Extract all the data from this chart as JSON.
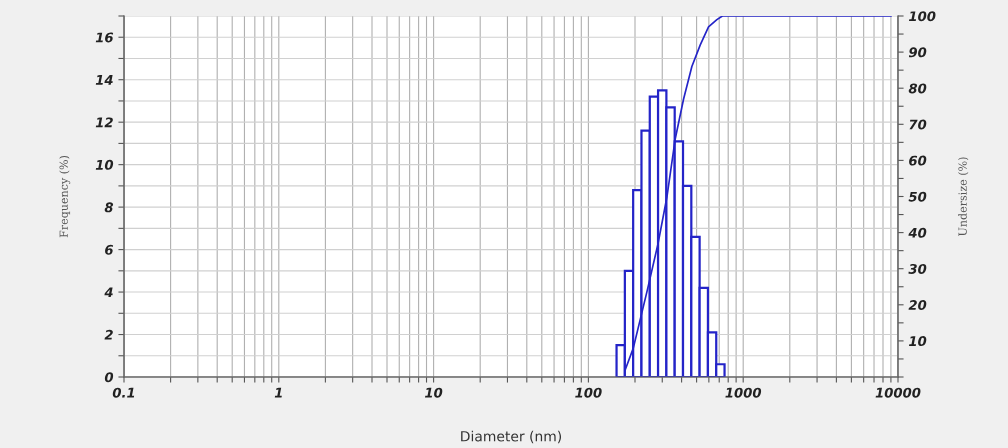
{
  "chart_data": {
    "type": "histogram",
    "xlabel": "Diameter (nm)",
    "ylabel": "Frequency (%)",
    "y2label": "Undersize (%)",
    "log": "x",
    "bins": [
      152,
      172,
      194.6,
      220.2,
      249.2,
      281.9,
      319,
      361,
      408.5,
      462.2,
      523,
      591.8,
      669.6,
      757.7
    ],
    "values": [
      1.5,
      5.0,
      8.8,
      11.6,
      13.2,
      13.5,
      12.7,
      11.1,
      9.0,
      6.6,
      4.2,
      2.1,
      0.6
    ],
    "color": "#2424c8",
    "series": [
      {
        "type": "line",
        "axis": "y2",
        "color": "#2424c8",
        "x": [
          173,
          195,
          240,
          282,
          322,
          364,
          412,
          466,
          528,
          597,
          676,
          734,
          9000
        ],
        "values": [
          2,
          8,
          24,
          37,
          50,
          66,
          77,
          86,
          92,
          97,
          99,
          100,
          100
        ]
      }
    ],
    "xlim": [
      0.1,
      10000
    ],
    "xticks": [
      0.1,
      {
        "value": 0.2,
        "label": null
      },
      {
        "value": 0.3,
        "label": null
      },
      {
        "value": 0.4,
        "label": null
      },
      {
        "value": 0.5,
        "label": null
      },
      {
        "value": 0.6,
        "label": null
      },
      {
        "value": 0.7,
        "label": null
      },
      {
        "value": 0.8,
        "label": null
      },
      {
        "value": 0.9,
        "label": null
      },
      1,
      {
        "value": 2,
        "label": null
      },
      {
        "value": 3,
        "label": null
      },
      {
        "value": 4,
        "label": null
      },
      {
        "value": 5,
        "label": null
      },
      {
        "value": 6,
        "label": null
      },
      {
        "value": 7,
        "label": null
      },
      {
        "value": 8,
        "label": null
      },
      {
        "value": 9,
        "label": null
      },
      10,
      {
        "value": 20,
        "label": null
      },
      {
        "value": 30,
        "label": null
      },
      {
        "value": 40,
        "label": null
      },
      {
        "value": 50,
        "label": null
      },
      {
        "value": 60,
        "label": null
      },
      {
        "value": 70,
        "label": null
      },
      {
        "value": 80,
        "label": null
      },
      {
        "value": 90,
        "label": null
      },
      100,
      {
        "value": 200,
        "label": null
      },
      {
        "value": 300,
        "label": null
      },
      {
        "value": 400,
        "label": null
      },
      {
        "value": 500,
        "label": null
      },
      {
        "value": 600,
        "label": null
      },
      {
        "value": 700,
        "label": null
      },
      {
        "value": 800,
        "label": null
      },
      {
        "value": 900,
        "label": null
      },
      1000,
      {
        "value": 2000,
        "label": null
      },
      {
        "value": 3000,
        "label": null
      },
      {
        "value": 4000,
        "label": null
      },
      {
        "value": 5000,
        "label": null
      },
      {
        "value": 6000,
        "label": null
      },
      {
        "value": 7000,
        "label": null
      },
      {
        "value": 8000,
        "label": null
      },
      {
        "value": 9000,
        "label": null
      },
      10000
    ],
    "ylim": [
      0,
      17
    ],
    "yticks": [
      0,
      {
        "value": 1,
        "label": null
      },
      2,
      {
        "value": 3,
        "label": null
      },
      4,
      {
        "value": 5,
        "label": null
      },
      6,
      {
        "value": 7,
        "label": null
      },
      8,
      {
        "value": 9,
        "label": null
      },
      10,
      {
        "value": 11,
        "label": null
      },
      12,
      {
        "value": 13,
        "label": null
      },
      14,
      {
        "value": 15,
        "label": null
      },
      16,
      {
        "value": 17,
        "label": null
      }
    ],
    "y2lim": [
      0,
      100
    ],
    "y2ticks": [
      {
        "value": 0,
        "label": null
      },
      {
        "value": 5,
        "label": null
      },
      10,
      {
        "value": 15,
        "label": null
      },
      20,
      {
        "value": 25,
        "label": null
      },
      30,
      {
        "value": 35,
        "label": null
      },
      40,
      {
        "value": 45,
        "label": null
      },
      50,
      {
        "value": 55,
        "label": null
      },
      60,
      {
        "value": 65,
        "label": null
      },
      70,
      {
        "value": 75,
        "label": null
      },
      80,
      {
        "value": 85,
        "label": null
      },
      90,
      {
        "value": 95,
        "label": null
      },
      100
    ],
    "grid": true
  }
}
